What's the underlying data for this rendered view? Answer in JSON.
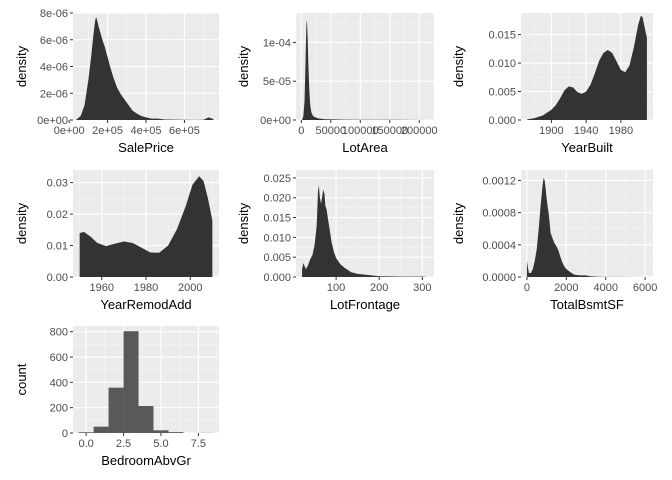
{
  "colors": {
    "panel": "#ebebeb",
    "grid_major": "#ffffff",
    "grid_minor": "#f5f5f5",
    "fill_density": "#333333",
    "fill_bar": "#595959",
    "tick": "#4d4d4d"
  },
  "chart_data": [
    {
      "type": "area",
      "xlabel": "SalePrice",
      "ylabel": "density",
      "xlim": [
        20000,
        780000
      ],
      "ylim": [
        0,
        8e-06
      ],
      "xticks": [
        0,
        200000,
        400000,
        600000
      ],
      "xticklabels": [
        "0e+00",
        "2e+05",
        "4e+05",
        "6e+05"
      ],
      "yticks": [
        0,
        2e-06,
        4e-06,
        6e-06,
        8e-06
      ],
      "yticklabels": [
        "0e+00",
        "2e-06",
        "4e-06",
        "6e-06",
        "8e-06"
      ],
      "x": [
        34900,
        60000,
        80000,
        100000,
        115000,
        125000,
        135000,
        140000,
        145000,
        155000,
        165000,
        175000,
        185000,
        200000,
        215000,
        230000,
        250000,
        270000,
        290000,
        310000,
        330000,
        350000,
        375000,
        400000,
        430000,
        460000,
        500000,
        550000,
        600000,
        650000,
        700000,
        725000,
        745000,
        755000
      ],
      "y": [
        0,
        3e-07,
        1.1e-06,
        3e-06,
        4.8e-06,
        6.2e-06,
        7.4e-06,
        7.7e-06,
        7.5e-06,
        6.9e-06,
        6.4e-06,
        5.9e-06,
        5.5e-06,
        4.7e-06,
        3.9e-06,
        3.2e-06,
        2.4e-06,
        1.9e-06,
        1.5e-06,
        1.1e-06,
        7e-07,
        5e-07,
        3e-07,
        2e-07,
        1e-07,
        1e-07,
        4e-08,
        3e-08,
        2e-08,
        1e-08,
        2e-08,
        2e-07,
        1e-07,
        0
      ]
    },
    {
      "type": "area",
      "xlabel": "LotArea",
      "ylabel": "density",
      "xlim": [
        -9000,
        225000
      ],
      "ylim": [
        0,
        0.000138
      ],
      "xticks": [
        0,
        50000,
        100000,
        150000,
        200000
      ],
      "xticklabels": [
        "0",
        "50000",
        "100000",
        "150000",
        "200000"
      ],
      "yticks": [
        0,
        5e-05,
        0.0001
      ],
      "yticklabels": [
        "0e+00",
        "5e-05",
        "1e-04"
      ],
      "x": [
        1300,
        3500,
        5500,
        7000,
        8000,
        8800,
        9500,
        10200,
        11000,
        12000,
        13500,
        15000,
        17000,
        20000,
        25000,
        30000,
        40000,
        55000,
        70000,
        100000,
        130000,
        160000,
        190000,
        215245
      ],
      "y": [
        0,
        5e-06,
        2.5e-05,
        7e-05,
        0.000105,
        0.000126,
        0.000128,
        0.000118,
        0.0001,
        7e-05,
        4e-05,
        2e-05,
        1e-05,
        5e-06,
        3e-06,
        2e-06,
        1e-06,
        8e-07,
        5e-07,
        4e-07,
        4e-07,
        3e-07,
        2e-07,
        0
      ]
    },
    {
      "type": "area",
      "xlabel": "YearBuilt",
      "ylabel": "density",
      "xlim": [
        1865,
        2017
      ],
      "ylim": [
        0,
        0.0188
      ],
      "xticks": [
        1900,
        1940,
        1980
      ],
      "xticklabels": [
        "1900",
        "1940",
        "1980"
      ],
      "yticks": [
        0,
        0.005,
        0.01,
        0.015
      ],
      "yticklabels": [
        "0.000",
        "0.005",
        "0.010",
        "0.015"
      ],
      "x": [
        1872,
        1880,
        1890,
        1900,
        1905,
        1910,
        1915,
        1920,
        1925,
        1930,
        1935,
        1940,
        1945,
        1950,
        1955,
        1960,
        1965,
        1970,
        1975,
        1980,
        1985,
        1990,
        1995,
        2000,
        2003,
        2005,
        2008,
        2010
      ],
      "y": [
        0.0001,
        0.0003,
        0.0008,
        0.0018,
        0.0026,
        0.0038,
        0.0052,
        0.0059,
        0.0057,
        0.0049,
        0.0046,
        0.005,
        0.0062,
        0.0082,
        0.0104,
        0.0118,
        0.0123,
        0.0118,
        0.0103,
        0.0088,
        0.0084,
        0.0096,
        0.0128,
        0.0168,
        0.0183,
        0.0181,
        0.0158,
        0.0145
      ]
    },
    {
      "type": "area",
      "xlabel": "YearRemodAdd",
      "ylabel": "density",
      "xlim": [
        1947,
        2013
      ],
      "ylim": [
        0,
        0.034
      ],
      "xticks": [
        1960,
        1980,
        2000
      ],
      "xticklabels": [
        "1960",
        "1980",
        "2000"
      ],
      "yticks": [
        0,
        0.01,
        0.02,
        0.03
      ],
      "yticklabels": [
        "0.00",
        "0.01",
        "0.02",
        "0.03"
      ],
      "x": [
        1950,
        1952,
        1955,
        1958,
        1962,
        1966,
        1970,
        1974,
        1978,
        1982,
        1986,
        1990,
        1994,
        1998,
        2001,
        2004,
        2006,
        2008,
        2010
      ],
      "y": [
        0.014,
        0.0143,
        0.0128,
        0.0108,
        0.0098,
        0.0106,
        0.0113,
        0.0108,
        0.0093,
        0.0078,
        0.0077,
        0.01,
        0.0152,
        0.0226,
        0.0293,
        0.032,
        0.0305,
        0.025,
        0.018
      ]
    },
    {
      "type": "area",
      "xlabel": "LotFrontage",
      "ylabel": "density",
      "xlim": [
        7,
        327
      ],
      "ylim": [
        0,
        0.027
      ],
      "xticks": [
        100,
        200,
        300
      ],
      "xticklabels": [
        "100",
        "200",
        "300"
      ],
      "yticks": [
        0,
        0.005,
        0.01,
        0.015,
        0.02,
        0.025
      ],
      "yticklabels": [
        "0.000",
        "0.005",
        "0.010",
        "0.015",
        "0.020",
        "0.025"
      ],
      "x": [
        21,
        24,
        30,
        35,
        40,
        45,
        50,
        55,
        58,
        60,
        62,
        65,
        68,
        70,
        73,
        75,
        78,
        80,
        85,
        90,
        95,
        100,
        110,
        120,
        135,
        150,
        175,
        200,
        250,
        300,
        313
      ],
      "y": [
        0.002,
        0.0035,
        0.002,
        0.003,
        0.0045,
        0.0055,
        0.008,
        0.013,
        0.0215,
        0.0232,
        0.0203,
        0.0185,
        0.0205,
        0.022,
        0.021,
        0.018,
        0.017,
        0.0155,
        0.012,
        0.0085,
        0.0063,
        0.0048,
        0.0032,
        0.0023,
        0.0012,
        0.0008,
        0.0005,
        0.0002,
        0.0001,
        0.0001,
        0
      ]
    },
    {
      "type": "area",
      "xlabel": "TotalBsmtSF",
      "ylabel": "density",
      "xlim": [
        -300,
        6400
      ],
      "ylim": [
        0,
        0.00133
      ],
      "xticks": [
        0,
        2000,
        4000,
        6000
      ],
      "xticklabels": [
        "0",
        "2000",
        "4000",
        "6000"
      ],
      "yticks": [
        0,
        0.0004,
        0.0008,
        0.0012
      ],
      "yticklabels": [
        "0.0000",
        "0.0004",
        "0.0008",
        "0.0012"
      ],
      "x": [
        0,
        30,
        100,
        200,
        300,
        400,
        500,
        600,
        700,
        800,
        850,
        900,
        950,
        1000,
        1050,
        1100,
        1150,
        1200,
        1300,
        1400,
        1500,
        1600,
        1700,
        1800,
        1900,
        2000,
        2200,
        2400,
        2700,
        3000,
        3200,
        3500,
        4000,
        5000,
        6110
      ],
      "y": [
        0.0002,
        0.00015,
        5e-05,
        5e-05,
        0.0001,
        0.0002,
        0.00035,
        0.0006,
        0.0009,
        0.00115,
        0.00123,
        0.0012,
        0.0011,
        0.00098,
        0.00088,
        0.0008,
        0.00068,
        0.00055,
        0.00048,
        0.00042,
        0.00038,
        0.00033,
        0.00025,
        0.00018,
        0.00013,
        0.0001,
        6e-05,
        3e-05,
        2e-05,
        2e-05,
        1e-05,
        5e-06,
        2e-06,
        1e-06,
        0
      ]
    },
    {
      "type": "bar",
      "xlabel": "BedroomAbvGr",
      "ylabel": "count",
      "xlim": [
        -0.875,
        8.875
      ],
      "ylim": [
        0,
        845
      ],
      "xticks": [
        0,
        2.5,
        5,
        7.5
      ],
      "xticklabels": [
        "0.0",
        "2.5",
        "5.0",
        "7.5"
      ],
      "yticks": [
        0,
        200,
        400,
        600,
        800
      ],
      "yticklabels": [
        "0",
        "200",
        "400",
        "600",
        "800"
      ],
      "bins": [
        [
          -0.5,
          0.5
        ],
        [
          0.5,
          1.5
        ],
        [
          1.5,
          2.5
        ],
        [
          2.5,
          3.5
        ],
        [
          3.5,
          4.5
        ],
        [
          4.5,
          5.5
        ],
        [
          5.5,
          6.5
        ],
        [
          6.5,
          7.5
        ],
        [
          7.5,
          8.5
        ]
      ],
      "values": [
        6,
        50,
        358,
        804,
        213,
        21,
        7,
        0,
        1
      ]
    }
  ]
}
